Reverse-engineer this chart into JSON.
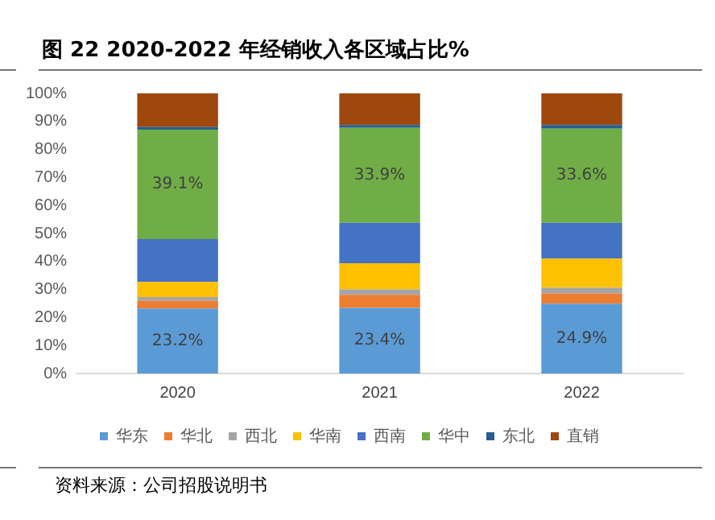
{
  "chart_data": {
    "type": "bar",
    "title": "图 22 2020-2022 年经销收入各区域占比%",
    "categories": [
      "2020",
      "2021",
      "2022"
    ],
    "stacked": true,
    "grid": false,
    "legend": "bottom",
    "ylim": [
      0,
      100
    ],
    "yticks": [
      {
        "value": 0,
        "label": "0%"
      },
      {
        "value": 10,
        "label": "10%"
      },
      {
        "value": 20,
        "label": "20%"
      },
      {
        "value": 30,
        "label": "30%"
      },
      {
        "value": 40,
        "label": "40%"
      },
      {
        "value": 50,
        "label": "50%"
      },
      {
        "value": 60,
        "label": "60%"
      },
      {
        "value": 70,
        "label": "70%"
      },
      {
        "value": 80,
        "label": "80%"
      },
      {
        "value": 90,
        "label": "90%"
      },
      {
        "value": 100,
        "label": "100%"
      }
    ],
    "series": [
      {
        "name": "华东",
        "color": "#5b9bd5",
        "values": [
          23.2,
          23.4,
          24.9
        ],
        "value_labels": [
          "23.2%",
          "23.4%",
          "24.9%"
        ]
      },
      {
        "name": "华北",
        "color": "#ed7d31",
        "values": [
          2.7,
          4.7,
          3.7
        ]
      },
      {
        "name": "西北",
        "color": "#a5a5a5",
        "values": [
          1.4,
          1.9,
          2.0
        ]
      },
      {
        "name": "华南",
        "color": "#ffc000",
        "values": [
          5.4,
          9.4,
          10.4
        ]
      },
      {
        "name": "西南",
        "color": "#4472c4",
        "values": [
          15.3,
          14.4,
          12.8
        ]
      },
      {
        "name": "华中",
        "color": "#70ad47",
        "values": [
          39.1,
          33.9,
          33.6
        ],
        "value_labels": [
          "39.1%",
          "33.9%",
          "33.6%"
        ]
      },
      {
        "name": "东北",
        "color": "#255e91",
        "values": [
          0.9,
          1.0,
          1.3
        ]
      },
      {
        "name": "直销",
        "color": "#9e480e",
        "values": [
          12.0,
          11.3,
          11.3
        ]
      }
    ],
    "annotations": [
      "资料来源：公司招股说明书"
    ]
  }
}
